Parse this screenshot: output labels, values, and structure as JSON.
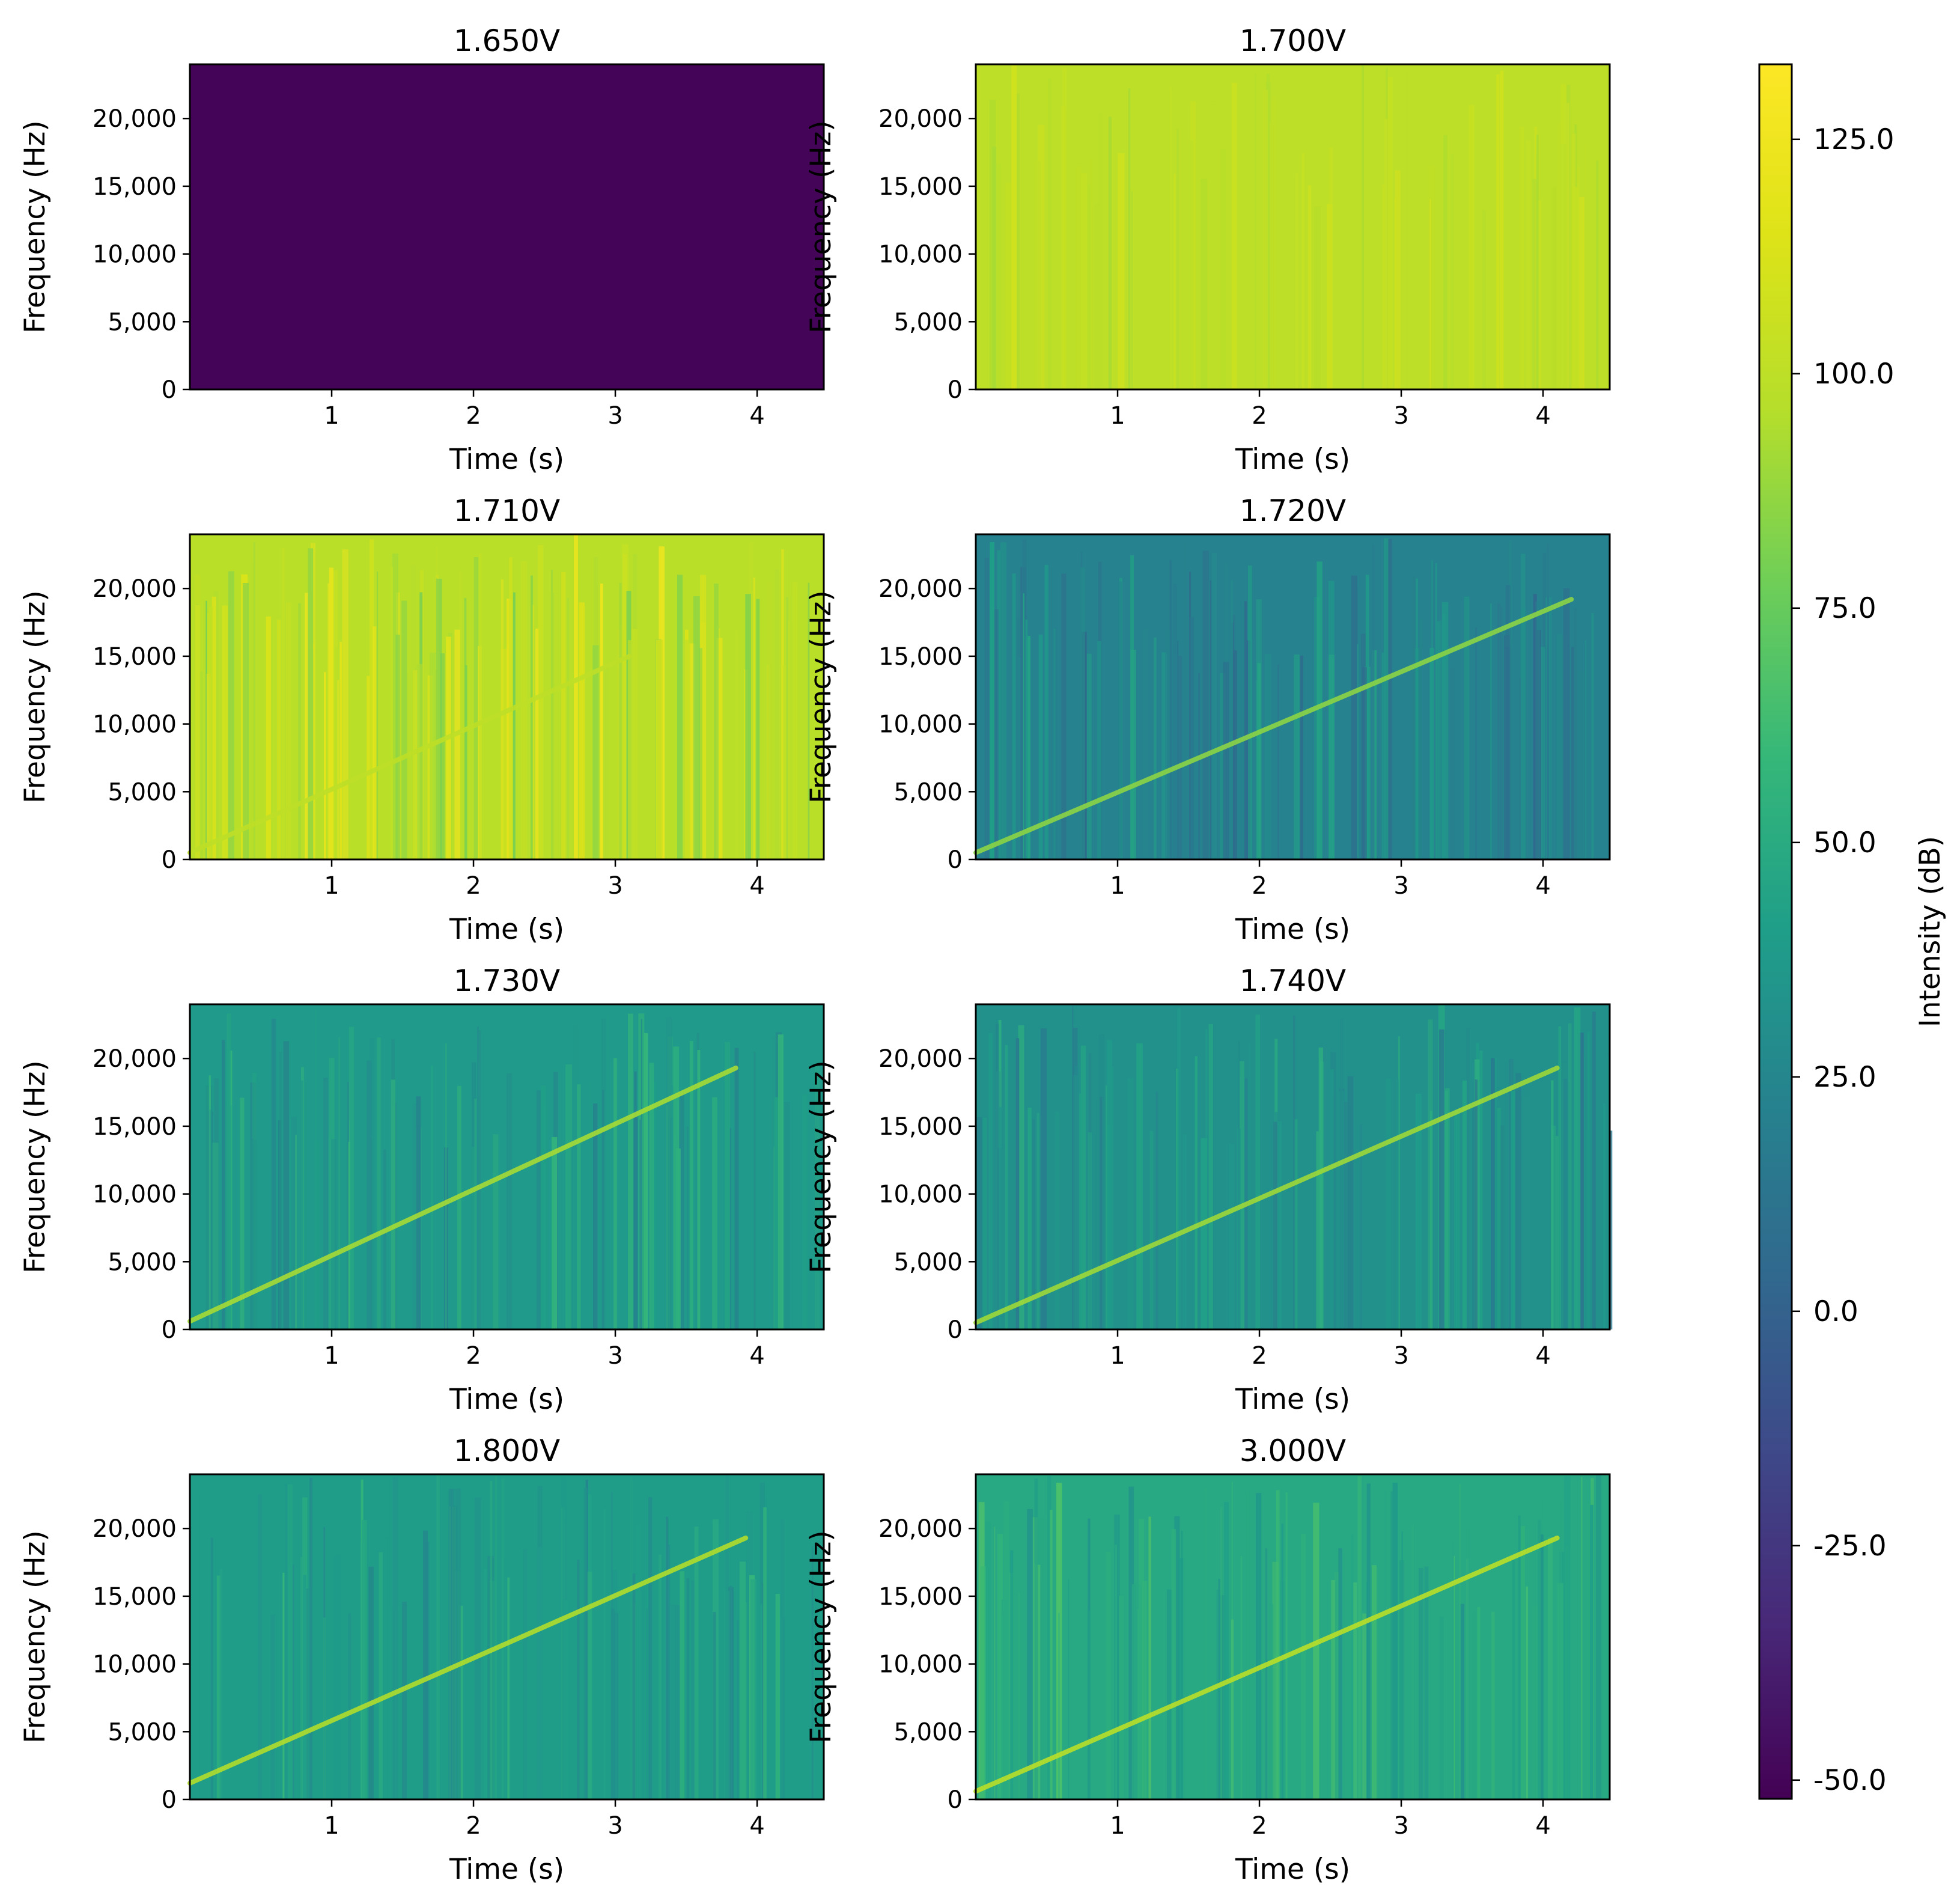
{
  "chart_data": [
    {
      "type": "heatmap",
      "title": "1.650V",
      "xlabel": "Time (s)",
      "ylabel": "Frequency (Hz)",
      "xlim": [
        0,
        4.47
      ],
      "ylim": [
        0,
        24000
      ],
      "xticks": [
        {
          "v": 1,
          "label": "1"
        },
        {
          "v": 2,
          "label": "2"
        },
        {
          "v": 3,
          "label": "3"
        },
        {
          "v": 4,
          "label": "4"
        }
      ],
      "yticks": [
        {
          "v": 0,
          "label": "0"
        },
        {
          "v": 5000,
          "label": "5,000"
        },
        {
          "v": 10000,
          "label": "10,000"
        },
        {
          "v": 15000,
          "label": "15,000"
        },
        {
          "v": 20000,
          "label": "20,000"
        }
      ],
      "background_db": -50,
      "noise_db": 0,
      "chirp": null
    },
    {
      "type": "heatmap",
      "title": "1.700V",
      "xlabel": "Time (s)",
      "ylabel": "Frequency (Hz)",
      "xlim": [
        0,
        4.47
      ],
      "ylim": [
        0,
        24000
      ],
      "xticks": [
        {
          "v": 1,
          "label": "1"
        },
        {
          "v": 2,
          "label": "2"
        },
        {
          "v": 3,
          "label": "3"
        },
        {
          "v": 4,
          "label": "4"
        }
      ],
      "yticks": [
        {
          "v": 0,
          "label": "0"
        },
        {
          "v": 5000,
          "label": "5,000"
        },
        {
          "v": 10000,
          "label": "10,000"
        },
        {
          "v": 15000,
          "label": "15,000"
        },
        {
          "v": 20000,
          "label": "20,000"
        }
      ],
      "background_db": 100,
      "noise_db": 8,
      "chirp": null
    },
    {
      "type": "heatmap",
      "title": "1.710V",
      "xlabel": "Time (s)",
      "ylabel": "Frequency (Hz)",
      "xlim": [
        0,
        4.47
      ],
      "ylim": [
        0,
        24000
      ],
      "xticks": [
        {
          "v": 1,
          "label": "1"
        },
        {
          "v": 2,
          "label": "2"
        },
        {
          "v": 3,
          "label": "3"
        },
        {
          "v": 4,
          "label": "4"
        }
      ],
      "yticks": [
        {
          "v": 0,
          "label": "0"
        },
        {
          "v": 5000,
          "label": "5,000"
        },
        {
          "v": 10000,
          "label": "10,000"
        },
        {
          "v": 15000,
          "label": "15,000"
        },
        {
          "v": 20000,
          "label": "20,000"
        }
      ],
      "background_db": 98,
      "noise_db": 22,
      "chirp": {
        "t0": 0.0,
        "f0": 500,
        "t1": 3.1,
        "f1": 15000,
        "db": 100
      }
    },
    {
      "type": "heatmap",
      "title": "1.720V",
      "xlabel": "Time (s)",
      "ylabel": "Frequency (Hz)",
      "xlim": [
        0,
        4.47
      ],
      "ylim": [
        0,
        24000
      ],
      "xticks": [
        {
          "v": 1,
          "label": "1"
        },
        {
          "v": 2,
          "label": "2"
        },
        {
          "v": 3,
          "label": "3"
        },
        {
          "v": 4,
          "label": "4"
        }
      ],
      "yticks": [
        {
          "v": 0,
          "label": "0"
        },
        {
          "v": 5000,
          "label": "5,000"
        },
        {
          "v": 10000,
          "label": "10,000"
        },
        {
          "v": 15000,
          "label": "15,000"
        },
        {
          "v": 20000,
          "label": "20,000"
        }
      ],
      "background_db": 22,
      "noise_db": 20,
      "chirp": {
        "t0": 0.0,
        "f0": 500,
        "t1": 4.2,
        "f1": 19200,
        "db": 85
      }
    },
    {
      "type": "heatmap",
      "title": "1.730V",
      "xlabel": "Time (s)",
      "ylabel": "Frequency (Hz)",
      "xlim": [
        0,
        4.47
      ],
      "ylim": [
        0,
        24000
      ],
      "xticks": [
        {
          "v": 1,
          "label": "1"
        },
        {
          "v": 2,
          "label": "2"
        },
        {
          "v": 3,
          "label": "3"
        },
        {
          "v": 4,
          "label": "4"
        }
      ],
      "yticks": [
        {
          "v": 0,
          "label": "0"
        },
        {
          "v": 5000,
          "label": "5,000"
        },
        {
          "v": 10000,
          "label": "10,000"
        },
        {
          "v": 15000,
          "label": "15,000"
        },
        {
          "v": 20000,
          "label": "20,000"
        }
      ],
      "background_db": 38,
      "noise_db": 18,
      "chirp": {
        "t0": 0.0,
        "f0": 600,
        "t1": 3.85,
        "f1": 19300,
        "db": 92
      }
    },
    {
      "type": "heatmap",
      "title": "1.740V",
      "xlabel": "Time (s)",
      "ylabel": "Frequency (Hz)",
      "xlim": [
        0,
        4.47
      ],
      "ylim": [
        0,
        24000
      ],
      "xticks": [
        {
          "v": 1,
          "label": "1"
        },
        {
          "v": 2,
          "label": "2"
        },
        {
          "v": 3,
          "label": "3"
        },
        {
          "v": 4,
          "label": "4"
        }
      ],
      "yticks": [
        {
          "v": 0,
          "label": "0"
        },
        {
          "v": 5000,
          "label": "5,000"
        },
        {
          "v": 10000,
          "label": "10,000"
        },
        {
          "v": 15000,
          "label": "15,000"
        },
        {
          "v": 20000,
          "label": "20,000"
        }
      ],
      "background_db": 32,
      "noise_db": 18,
      "chirp": {
        "t0": 0.0,
        "f0": 500,
        "t1": 4.1,
        "f1": 19300,
        "db": 90
      }
    },
    {
      "type": "heatmap",
      "title": "1.800V",
      "xlabel": "Time (s)",
      "ylabel": "Frequency (Hz)",
      "xlim": [
        0,
        4.47
      ],
      "ylim": [
        0,
        24000
      ],
      "xticks": [
        {
          "v": 1,
          "label": "1"
        },
        {
          "v": 2,
          "label": "2"
        },
        {
          "v": 3,
          "label": "3"
        },
        {
          "v": 4,
          "label": "4"
        }
      ],
      "yticks": [
        {
          "v": 0,
          "label": "0"
        },
        {
          "v": 5000,
          "label": "5,000"
        },
        {
          "v": 10000,
          "label": "10,000"
        },
        {
          "v": 15000,
          "label": "15,000"
        },
        {
          "v": 20000,
          "label": "20,000"
        }
      ],
      "background_db": 40,
      "noise_db": 16,
      "chirp": {
        "t0": 0.0,
        "f0": 1200,
        "t1": 3.92,
        "f1": 19300,
        "db": 95
      }
    },
    {
      "type": "heatmap",
      "title": "3.000V",
      "xlabel": "Time (s)",
      "ylabel": "Frequency (Hz)",
      "xlim": [
        0,
        4.47
      ],
      "ylim": [
        0,
        24000
      ],
      "xticks": [
        {
          "v": 1,
          "label": "1"
        },
        {
          "v": 2,
          "label": "2"
        },
        {
          "v": 3,
          "label": "3"
        },
        {
          "v": 4,
          "label": "4"
        }
      ],
      "yticks": [
        {
          "v": 0,
          "label": "0"
        },
        {
          "v": 5000,
          "label": "5,000"
        },
        {
          "v": 10000,
          "label": "10,000"
        },
        {
          "v": 15000,
          "label": "15,000"
        },
        {
          "v": 20000,
          "label": "20,000"
        }
      ],
      "background_db": 48,
      "noise_db": 16,
      "chirp": {
        "t0": 0.0,
        "f0": 600,
        "t1": 4.1,
        "f1": 19300,
        "db": 98
      }
    }
  ],
  "colorbar": {
    "label": "Intensity (dB)",
    "colormap": "viridis",
    "range": [
      -52,
      133
    ],
    "ticks": [
      {
        "v": 125,
        "label": "125.0"
      },
      {
        "v": 100,
        "label": "100.0"
      },
      {
        "v": 75,
        "label": "75.0"
      },
      {
        "v": 50,
        "label": "50.0"
      },
      {
        "v": 25,
        "label": "25.0"
      },
      {
        "v": 0,
        "label": "0.0"
      },
      {
        "v": -25,
        "label": "-25.0"
      },
      {
        "v": -50,
        "label": "-50.0"
      }
    ]
  }
}
